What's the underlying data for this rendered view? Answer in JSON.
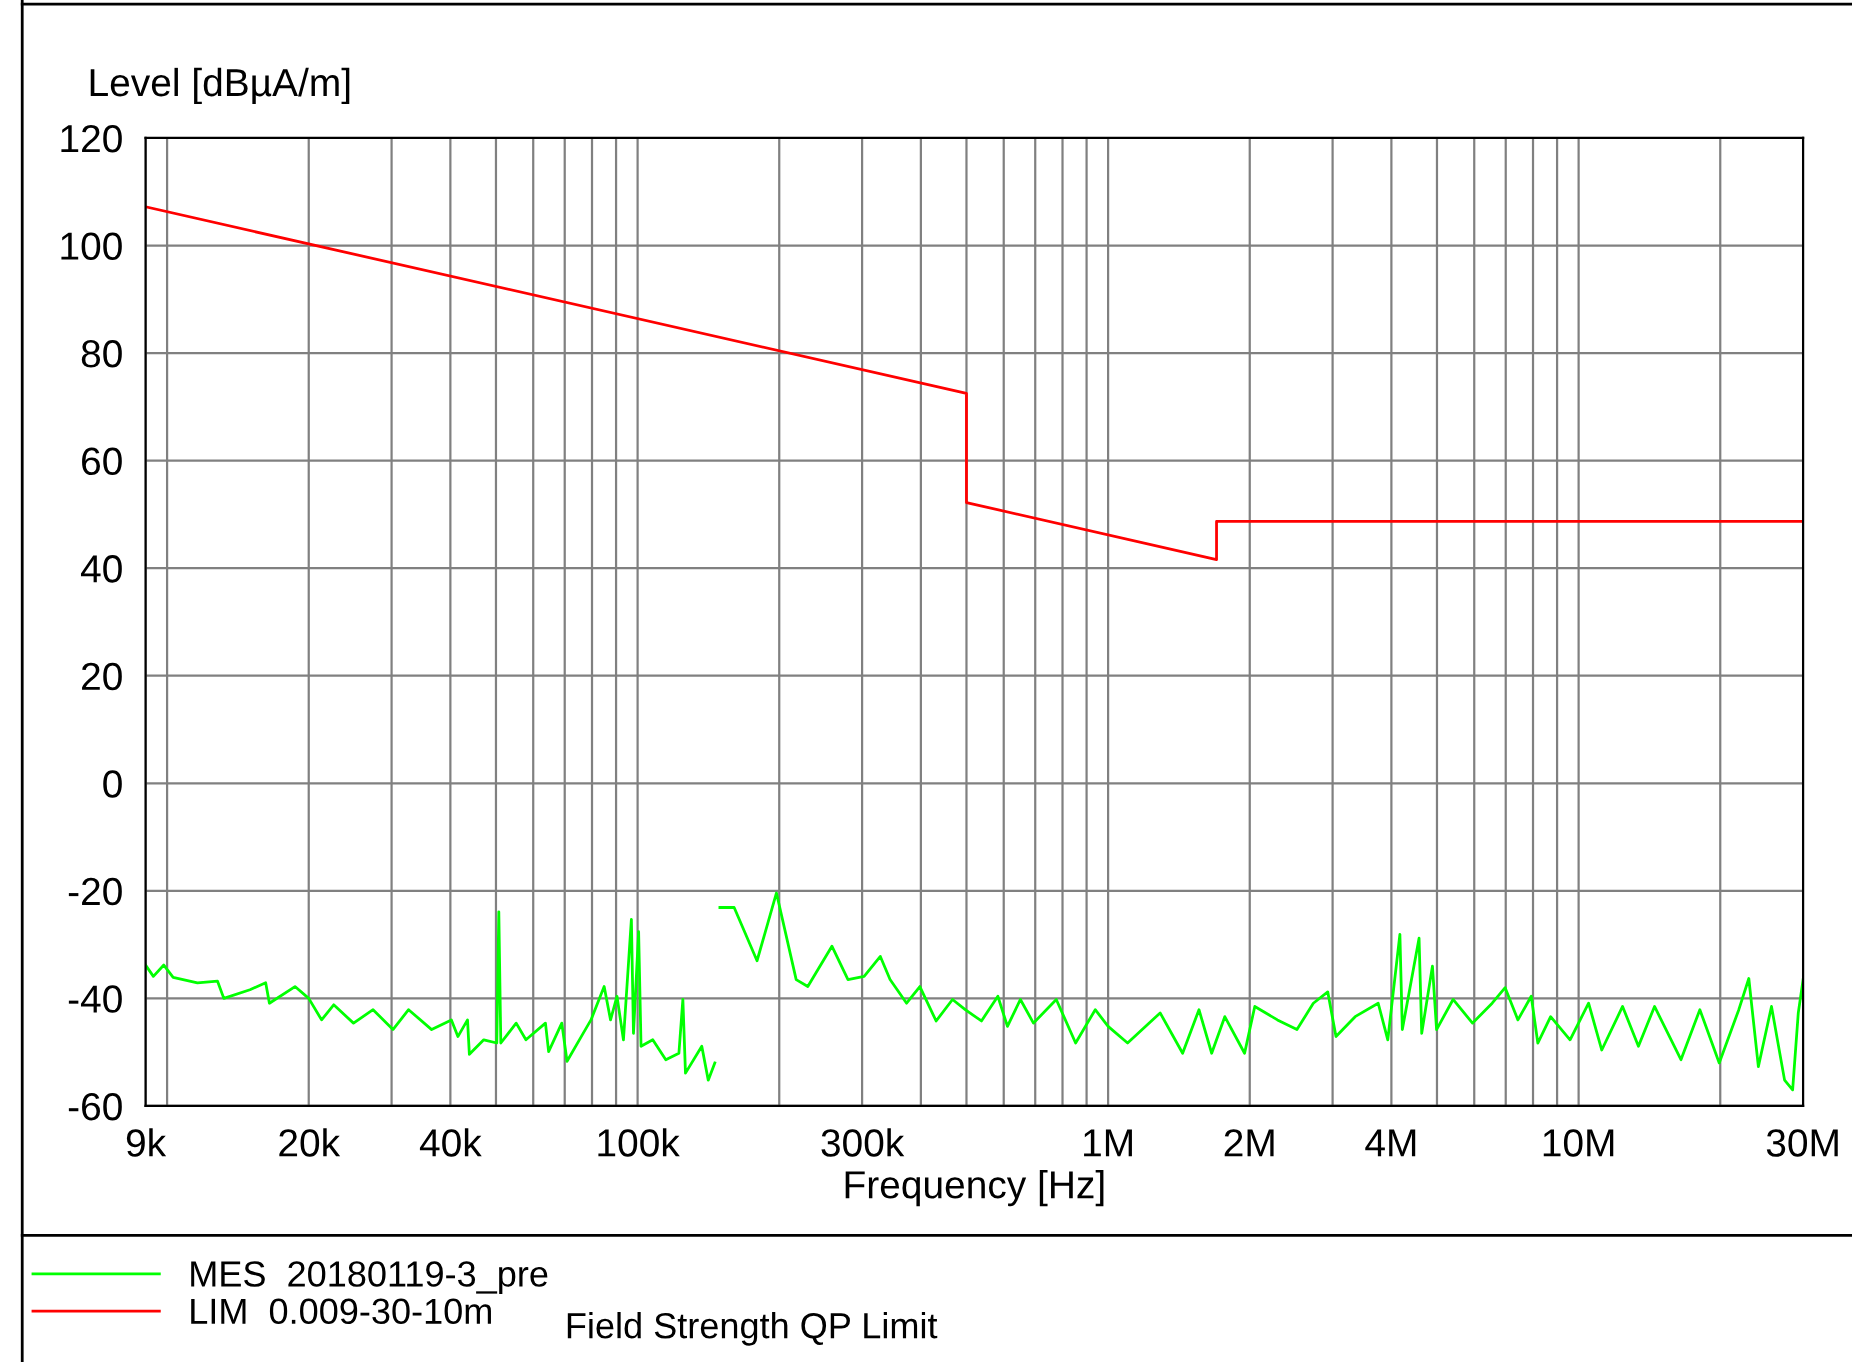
{
  "chart_data": {
    "type": "line",
    "xlabel": "Frequency [Hz]",
    "ylabel": "Level [dBµA/m]",
    "log": "x",
    "xlim": [
      9000,
      30000000
    ],
    "ylim": [
      -60,
      120
    ],
    "yticks": [
      -60,
      -40,
      -20,
      0,
      20,
      40,
      60,
      80,
      100,
      120
    ],
    "xticks": [
      {
        "value": 9000,
        "label": "9k"
      },
      {
        "value": 10000,
        "label": null
      },
      {
        "value": 20000,
        "label": "20k"
      },
      {
        "value": 30000,
        "label": null
      },
      {
        "value": 40000,
        "label": "40k"
      },
      {
        "value": 50000,
        "label": null
      },
      {
        "value": 60000,
        "label": null
      },
      {
        "value": 70000,
        "label": null
      },
      {
        "value": 80000,
        "label": null
      },
      {
        "value": 90000,
        "label": null
      },
      {
        "value": 100000,
        "label": "100k"
      },
      {
        "value": 200000,
        "label": null
      },
      {
        "value": 300000,
        "label": "300k"
      },
      {
        "value": 400000,
        "label": null
      },
      {
        "value": 500000,
        "label": null
      },
      {
        "value": 600000,
        "label": null
      },
      {
        "value": 700000,
        "label": null
      },
      {
        "value": 800000,
        "label": null
      },
      {
        "value": 900000,
        "label": null
      },
      {
        "value": 1000000,
        "label": "1M"
      },
      {
        "value": 2000000,
        "label": "2M"
      },
      {
        "value": 3000000,
        "label": null
      },
      {
        "value": 4000000,
        "label": "4M"
      },
      {
        "value": 5000000,
        "label": null
      },
      {
        "value": 6000000,
        "label": null
      },
      {
        "value": 7000000,
        "label": null
      },
      {
        "value": 8000000,
        "label": null
      },
      {
        "value": 9000000,
        "label": null
      },
      {
        "value": 10000000,
        "label": "10M"
      },
      {
        "value": 20000000,
        "label": null
      },
      {
        "value": 30000000,
        "label": "30M"
      }
    ],
    "grid": true,
    "legend": "bottom left",
    "marker": "none",
    "line_style": "solid",
    "annotations": [
      "Field Strength QP Limit"
    ],
    "series": [
      {
        "name": "MES  20180119-3_pre",
        "color": "#00ff00",
        "x": [
          9000,
          9350,
          9840,
          10300,
          11600,
          12800,
          13200,
          15000,
          16200,
          16500,
          18700,
          20000,
          21300,
          22600,
          24900,
          27400,
          30200,
          32600,
          36500,
          40200,
          41500,
          43500,
          43900,
          47100,
          50200,
          50700,
          51200,
          55200,
          57900,
          63700,
          64700,
          69000,
          70800,
          75900,
          79600,
          84900,
          87600,
          90400,
          93300,
          97000,
          98000,
          100500,
          101700,
          107700,
          114800,
          122400,
          124800,
          126400,
          136900,
          141300,
          145900,
          147800,
          149600,
          160400,
          179400,
          197300,
          217300,
          230000,
          258800,
          280000,
          303000,
          328000,
          344000,
          373000,
          398000,
          431000,
          467000,
          497000,
          538000,
          583000,
          611000,
          651000,
          694000,
          776000,
          853000,
          939000,
          1000000,
          1100000,
          1290000,
          1440000,
          1560000,
          1660000,
          1770000,
          1950000,
          2050000,
          2290000,
          2520000,
          2730000,
          2930000,
          3050000,
          3350000,
          3750000,
          3930000,
          4170000,
          4220000,
          4580000,
          4640000,
          4890000,
          4990000,
          5410000,
          5950000,
          6550000,
          6980000,
          7430000,
          7930000,
          8190000,
          8720000,
          9590000,
          10500000,
          11200000,
          12400000,
          13400000,
          14500000,
          16500000,
          18100000,
          19900000,
          21900000,
          23000000,
          24100000,
          25700000,
          27400000,
          28500000,
          29300000,
          30000000
        ],
        "values": [
          -33.8,
          -35.9,
          -33.8,
          -36.1,
          -37.1,
          -36.8,
          -40,
          -38.4,
          -37.1,
          -40.9,
          -37.8,
          -40,
          -44,
          -41.2,
          -44.6,
          -42.1,
          -45.8,
          -42.1,
          -45.8,
          -44,
          -47.1,
          -44,
          -50.4,
          -47.7,
          -48.3,
          -23.9,
          -48.3,
          -44.6,
          -47.7,
          -44.6,
          -49.9,
          -44.6,
          -51.7,
          -47.1,
          -44,
          -37.8,
          -44,
          -39.6,
          -47.7,
          -25.3,
          -46.5,
          -27.6,
          -48.9,
          -47.7,
          -51.4,
          -50.2,
          -40.2,
          -53.9,
          -48.9,
          -55.2,
          -52,
          null,
          -23.1,
          -23.1,
          -33,
          -20.4,
          -36.5,
          -37.8,
          -30.3,
          -36.5,
          -35.9,
          -32.2,
          -36.5,
          -40.9,
          -37.8,
          -44.2,
          -40.2,
          -42.1,
          -44.2,
          -39.6,
          -45.2,
          -40.2,
          -44.6,
          -40.2,
          -48.3,
          -42.1,
          -45.2,
          -48.3,
          -42.7,
          -50.2,
          -42.1,
          -50.2,
          -43.4,
          -50.2,
          -41.5,
          -44,
          -45.8,
          -40.9,
          -38.8,
          -47.1,
          -43.4,
          -40.9,
          -47.7,
          -28.1,
          -45.8,
          -28.8,
          -46.5,
          -34,
          -45.8,
          -40.2,
          -44.6,
          -40.9,
          -38,
          -44,
          -39.6,
          -48.3,
          -43.4,
          -47.7,
          -40.9,
          -49.6,
          -41.5,
          -48.9,
          -41.5,
          -51.4,
          -42.1,
          -52,
          -42.1,
          -36.3,
          -52.7,
          -41.5,
          -55.2,
          -57,
          -42.7,
          -36.5
        ]
      },
      {
        "name": "LIM  0.009-30-10m",
        "color": "#ff0000",
        "x": [
          9000,
          500000,
          500000,
          1700000,
          1700000,
          30000000
        ],
        "values": [
          107.2,
          72.5,
          52.2,
          41.6,
          48.7,
          48.7
        ]
      }
    ]
  }
}
